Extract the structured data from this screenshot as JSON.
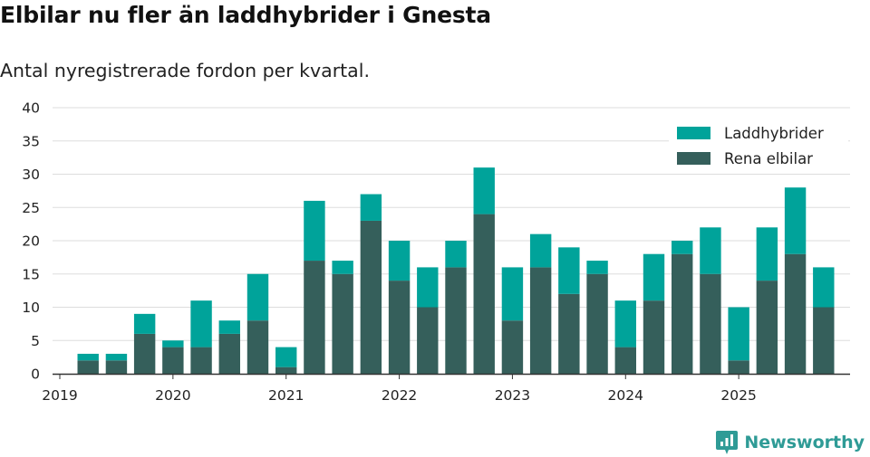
{
  "header": {
    "title": "Elbilar nu fler än laddhybrider i Gnesta",
    "subtitle": "Antal nyregistrerade fordon per kvartal."
  },
  "brand": {
    "name": "Newsworthy",
    "icon": "newsworthy-logo-icon"
  },
  "colors": {
    "phev": "#00a39a",
    "bev": "#355f5b",
    "grid": "#dddddd",
    "axis": "#333333"
  },
  "chart_data": {
    "type": "bar",
    "stacked": true,
    "title": "Elbilar nu fler än laddhybrider i Gnesta",
    "subtitle": "Antal nyregistrerade fordon per kvartal.",
    "xlabel": "",
    "ylabel": "",
    "ylim": [
      0,
      40
    ],
    "yticks": [
      0,
      5,
      10,
      15,
      20,
      25,
      30,
      35,
      40
    ],
    "grid": true,
    "legend_position": "top-right",
    "x_start": 2019.0,
    "x_end": 2026.0,
    "xticks": [
      {
        "label": "2019",
        "value": 2019.0
      },
      {
        "label": "2020",
        "value": 2020.0
      },
      {
        "label": "2021",
        "value": 2021.0
      },
      {
        "label": "2022",
        "value": 2022.0
      },
      {
        "label": "2023",
        "value": 2023.0
      },
      {
        "label": "2024",
        "value": 2024.0
      },
      {
        "label": "2025",
        "value": 2025.0
      }
    ],
    "categories": [
      "2019 Q2",
      "2019 Q3",
      "2019 Q4",
      "2020 Q1",
      "2020 Q2",
      "2020 Q3",
      "2020 Q4",
      "2021 Q1",
      "2021 Q2",
      "2021 Q3",
      "2021 Q4",
      "2022 Q1",
      "2022 Q2",
      "2022 Q3",
      "2022 Q4",
      "2023 Q1",
      "2023 Q2",
      "2023 Q3",
      "2023 Q4",
      "2024 Q1",
      "2024 Q2",
      "2024 Q3",
      "2024 Q4",
      "2025 Q1",
      "2025 Q2",
      "2025 Q3",
      "2025 Q4"
    ],
    "x": [
      2019.25,
      2019.5,
      2019.75,
      2020.0,
      2020.25,
      2020.5,
      2020.75,
      2021.0,
      2021.25,
      2021.5,
      2021.75,
      2022.0,
      2022.25,
      2022.5,
      2022.75,
      2023.0,
      2023.25,
      2023.5,
      2023.75,
      2024.0,
      2024.25,
      2024.5,
      2024.75,
      2025.0,
      2025.25,
      2025.5,
      2025.75
    ],
    "series": [
      {
        "name": "Rena elbilar",
        "color_key": "bev",
        "values": [
          2,
          2,
          6,
          4,
          4,
          6,
          8,
          1,
          17,
          15,
          23,
          14,
          10,
          16,
          24,
          8,
          16,
          12,
          15,
          4,
          11,
          18,
          15,
          2,
          14,
          18,
          10
        ]
      },
      {
        "name": "Laddhybrider",
        "color_key": "phev",
        "values": [
          1,
          1,
          3,
          1,
          7,
          2,
          7,
          3,
          9,
          2,
          4,
          6,
          6,
          4,
          7,
          8,
          5,
          7,
          2,
          7,
          7,
          2,
          7,
          8,
          8,
          10,
          6
        ]
      }
    ],
    "legend": [
      "Laddhybrider",
      "Rena elbilar"
    ]
  }
}
